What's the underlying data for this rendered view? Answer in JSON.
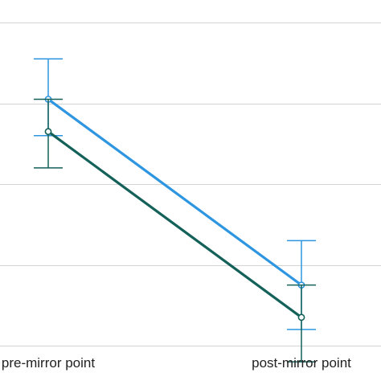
{
  "chart_data": {
    "type": "line",
    "categories": [
      "pre-mirror point",
      "post-mirror point"
    ],
    "series": [
      {
        "color": "#2e96e0",
        "values": [
          3.05,
          0.75
        ],
        "error_low": [
          2.6,
          0.2
        ],
        "error_high": [
          3.55,
          1.3
        ]
      },
      {
        "color": "#136158",
        "values": [
          2.65,
          0.35
        ],
        "error_low": [
          2.2,
          -0.2
        ],
        "error_high": [
          3.05,
          0.75
        ]
      }
    ],
    "ylim": [
      0,
      4
    ],
    "grid": true,
    "grid_color": "#d4d4d4"
  }
}
